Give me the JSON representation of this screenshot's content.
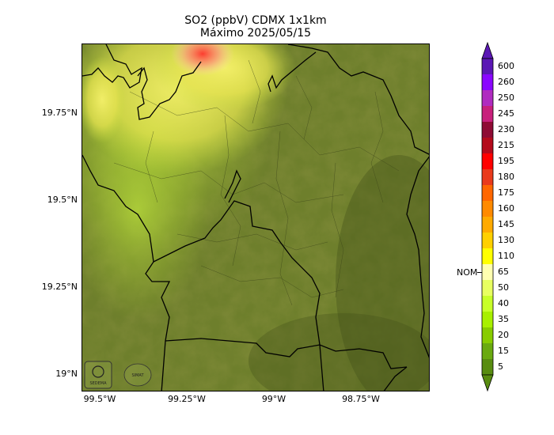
{
  "title": {
    "line1": "SO2 (ppbV) CDMX 1x1km",
    "line2": "Máximo 2025/05/15"
  },
  "axes": {
    "y_ticks": [
      "19.75°N",
      "19.5°N",
      "19.25°N",
      "19°N"
    ],
    "x_ticks": [
      "99.5°W",
      "99.25°W",
      "99°W",
      "98.75°W"
    ]
  },
  "colorbar": {
    "labels": [
      "600",
      "260",
      "250",
      "245",
      "230",
      "215",
      "195",
      "180",
      "175",
      "160",
      "145",
      "130",
      "110",
      "65",
      "50",
      "40",
      "35",
      "20",
      "15",
      "5"
    ],
    "colors": [
      "#5b17b5",
      "#8a06ff",
      "#b02bc0",
      "#c8207c",
      "#8e0b34",
      "#b40a1b",
      "#ff0000",
      "#e93a1c",
      "#ff6600",
      "#ff8a00",
      "#ffaa00",
      "#ffd000",
      "#ffff00",
      "#ffffb0",
      "#e8ff60",
      "#c8ff28",
      "#a8f000",
      "#88cc00",
      "#6aaa10",
      "#588c10"
    ],
    "nom_label": "NOM"
  },
  "logos": [
    "SEDEMA-logo",
    "SIMAT-logo"
  ]
}
